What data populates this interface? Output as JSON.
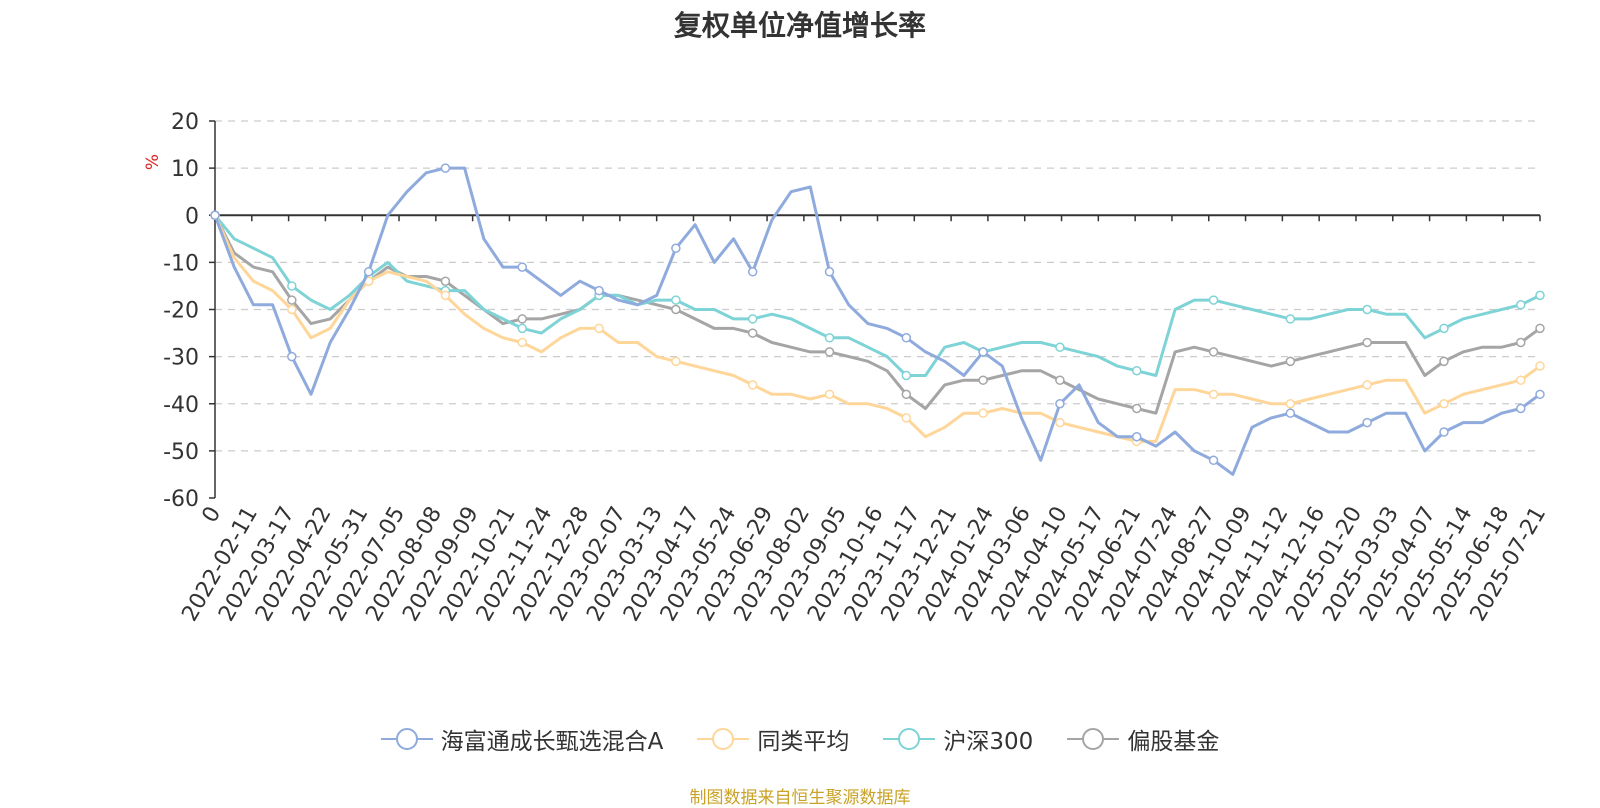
{
  "colors": {
    "axis": "#333333",
    "grid": "#cccccc",
    "unit": "#e02020",
    "source": "#c9a227"
  },
  "chart_data": {
    "type": "line",
    "title": "复权单位净值增长率",
    "ylabel": "%",
    "ylim": [
      -60,
      20
    ],
    "yticks": [
      20,
      10,
      0,
      -10,
      -20,
      -30,
      -40,
      -50,
      -60
    ],
    "grid": true,
    "legend_position": "bottom",
    "x_start_label": "0",
    "xticks": [
      "2022-02-11",
      "2022-03-17",
      "2022-04-22",
      "2022-05-31",
      "2022-07-05",
      "2022-08-08",
      "2022-09-09",
      "2022-10-21",
      "2022-11-24",
      "2022-12-28",
      "2023-02-07",
      "2023-03-13",
      "2023-04-17",
      "2023-05-24",
      "2023-06-29",
      "2023-08-02",
      "2023-09-05",
      "2023-10-16",
      "2023-11-17",
      "2023-12-21",
      "2024-01-24",
      "2024-03-06",
      "2024-04-10",
      "2024-05-17",
      "2024-06-21",
      "2024-07-24",
      "2024-08-27",
      "2024-10-09",
      "2024-11-12",
      "2024-12-16",
      "2025-01-20",
      "2025-03-03",
      "2025-04-07",
      "2025-05-14",
      "2025-06-18",
      "2025-07-21"
    ],
    "series": [
      {
        "name": "海富通成长甄选混合A",
        "color": "#8faadc",
        "values": [
          0,
          -11,
          -19,
          -19,
          -30,
          -38,
          -27,
          -20,
          -12,
          0,
          5,
          9,
          10,
          10,
          -5,
          -11,
          -11,
          -14,
          -17,
          -14,
          -16,
          -18,
          -19,
          -17,
          -7,
          -2,
          -10,
          -5,
          -12,
          -1,
          5,
          6,
          -12,
          -19,
          -23,
          -24,
          -26,
          -29,
          -31,
          -34,
          -29,
          -32,
          -43,
          -52,
          -40,
          -36,
          -44,
          -47,
          -47,
          -49,
          -46,
          -50,
          -52,
          -55,
          -45,
          -43,
          -42,
          -44,
          -46,
          -46,
          -44,
          -42,
          -42,
          -50,
          -46,
          -44,
          -44,
          -42,
          -41,
          -38
        ]
      },
      {
        "name": "同类平均",
        "color": "#ffd699",
        "values": [
          0,
          -9,
          -14,
          -16,
          -20,
          -26,
          -24,
          -18,
          -14,
          -12,
          -13,
          -14,
          -17,
          -21,
          -24,
          -26,
          -27,
          -29,
          -26,
          -24,
          -24,
          -27,
          -27,
          -30,
          -31,
          -32,
          -33,
          -34,
          -36,
          -38,
          -38,
          -39,
          -38,
          -40,
          -40,
          -41,
          -43,
          -47,
          -45,
          -42,
          -42,
          -41,
          -42,
          -42,
          -44,
          -45,
          -46,
          -47,
          -48,
          -48,
          -37,
          -37,
          -38,
          -38,
          -39,
          -40,
          -40,
          -39,
          -38,
          -37,
          -36,
          -35,
          -35,
          -42,
          -40,
          -38,
          -37,
          -36,
          -35,
          -32
        ]
      },
      {
        "name": "沪深300",
        "color": "#7ed3d6",
        "values": [
          0,
          -5,
          -7,
          -9,
          -15,
          -18,
          -20,
          -17,
          -13,
          -10,
          -14,
          -15,
          -16,
          -16,
          -20,
          -22,
          -24,
          -25,
          -22,
          -20,
          -17,
          -17,
          -19,
          -18,
          -18,
          -20,
          -20,
          -22,
          -22,
          -21,
          -22,
          -24,
          -26,
          -26,
          -28,
          -30,
          -34,
          -34,
          -28,
          -27,
          -29,
          -28,
          -27,
          -27,
          -28,
          -29,
          -30,
          -32,
          -33,
          -34,
          -20,
          -18,
          -18,
          -19,
          -20,
          -21,
          -22,
          -22,
          -21,
          -20,
          -20,
          -21,
          -21,
          -26,
          -24,
          -22,
          -21,
          -20,
          -19,
          -17
        ]
      },
      {
        "name": "偏股基金",
        "color": "#a5a5a5",
        "values": [
          0,
          -8,
          -11,
          -12,
          -18,
          -23,
          -22,
          -18,
          -14,
          -11,
          -13,
          -13,
          -14,
          -17,
          -20,
          -23,
          -22,
          -22,
          -21,
          -20,
          -17,
          -17,
          -18,
          -19,
          -20,
          -22,
          -24,
          -24,
          -25,
          -27,
          -28,
          -29,
          -29,
          -30,
          -31,
          -33,
          -38,
          -41,
          -36,
          -35,
          -35,
          -34,
          -33,
          -33,
          -35,
          -37,
          -39,
          -40,
          -41,
          -42,
          -29,
          -28,
          -29,
          -30,
          -31,
          -32,
          -31,
          -30,
          -29,
          -28,
          -27,
          -27,
          -27,
          -34,
          -31,
          -29,
          -28,
          -28,
          -27,
          -24
        ]
      }
    ]
  },
  "source": "制图数据来自恒生聚源数据库"
}
